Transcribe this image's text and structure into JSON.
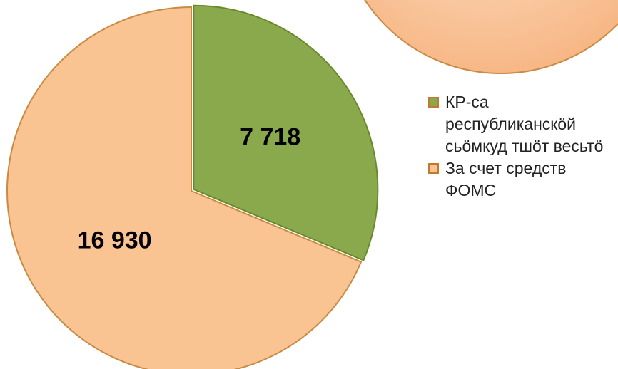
{
  "chart_data": {
    "type": "pie",
    "categories": [
      "КР-са республиканскӧй сьӧмкуд тшӧт весьтӧ",
      "За счет средств ФОМС"
    ],
    "values": [
      7718,
      16930
    ],
    "value_labels": [
      "7 718",
      "16 930"
    ],
    "colors": [
      "#8aa84c",
      "#fac392"
    ]
  }
}
